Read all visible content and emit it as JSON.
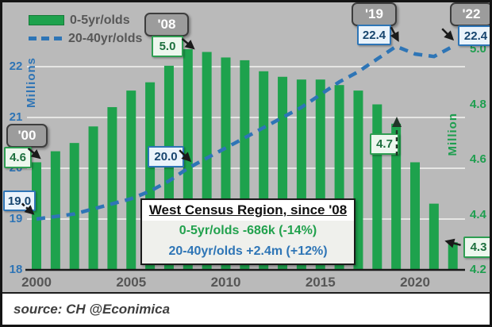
{
  "window": {
    "source_credit": "source: CH  @Econimica"
  },
  "legend": {
    "items": [
      {
        "label": "0-5yr/olds"
      },
      {
        "label": "20-40yr/olds"
      }
    ]
  },
  "callouts": {
    "y00": {
      "tag": "'00",
      "bar_value": "4.6",
      "line_value": "19.0"
    },
    "y08": {
      "tag": "'08",
      "bar_value": "5.0",
      "line_value": "20.0"
    },
    "y19": {
      "tag": "'19",
      "bar_value": "4.7",
      "line_value": "22.4"
    },
    "y22": {
      "tag": "'22",
      "bar_value": "4.3",
      "line_value": "22.4"
    }
  },
  "annotation": {
    "title": "West Census Region, since '08",
    "bar_stat": "0-5yr/olds -686k (-14%)",
    "line_stat": "20-40yr/olds +2.4m (+12%)"
  },
  "chart_data": {
    "type": "combo-bar-line",
    "x": [
      2000,
      2001,
      2002,
      2003,
      2004,
      2005,
      2006,
      2007,
      2008,
      2009,
      2010,
      2011,
      2012,
      2013,
      2014,
      2015,
      2016,
      2017,
      2018,
      2019,
      2020,
      2021,
      2022
    ],
    "series": [
      {
        "name": "0-5yr/olds",
        "type": "bar",
        "axis": "right",
        "color": "#1ea24d",
        "values": [
          4.59,
          4.63,
          4.66,
          4.72,
          4.79,
          4.85,
          4.88,
          4.94,
          5.0,
          4.99,
          4.97,
          4.96,
          4.92,
          4.9,
          4.89,
          4.89,
          4.87,
          4.85,
          4.8,
          4.73,
          4.59,
          4.44,
          4.3
        ]
      },
      {
        "name": "20-40yr/olds",
        "type": "line",
        "axis": "left",
        "dashed": true,
        "color": "#2e75b6",
        "values": [
          19.0,
          19.05,
          19.1,
          19.2,
          19.3,
          19.4,
          19.55,
          19.75,
          20.0,
          20.2,
          20.4,
          20.6,
          20.8,
          21.0,
          21.2,
          21.45,
          21.7,
          21.9,
          22.15,
          22.4,
          22.25,
          22.2,
          22.4
        ]
      }
    ],
    "left_axis": {
      "label": "Millions",
      "color": "#2e74b5",
      "min": 18,
      "max": 22.5,
      "ticks": [
        18,
        19,
        20,
        21,
        22
      ]
    },
    "right_axis": {
      "label": "Million",
      "color": "#1e9e4f",
      "min": 4.2,
      "max": 5.0,
      "ticks": [
        "4.2",
        "4.4",
        "4.6",
        "4.8",
        "5.0"
      ]
    },
    "x_axis": {
      "ticks": [
        2000,
        2005,
        2010,
        2015,
        2020
      ]
    },
    "grid": true,
    "plot_background": "#bababa",
    "annotated_points": {
      "2000": {
        "line": 19.0,
        "bar": 4.6
      },
      "2008": {
        "line": 20.0,
        "bar": 5.0
      },
      "2019": {
        "line": 22.4,
        "bar": 4.7
      },
      "2022": {
        "line": 22.4,
        "bar": 4.3
      }
    }
  }
}
